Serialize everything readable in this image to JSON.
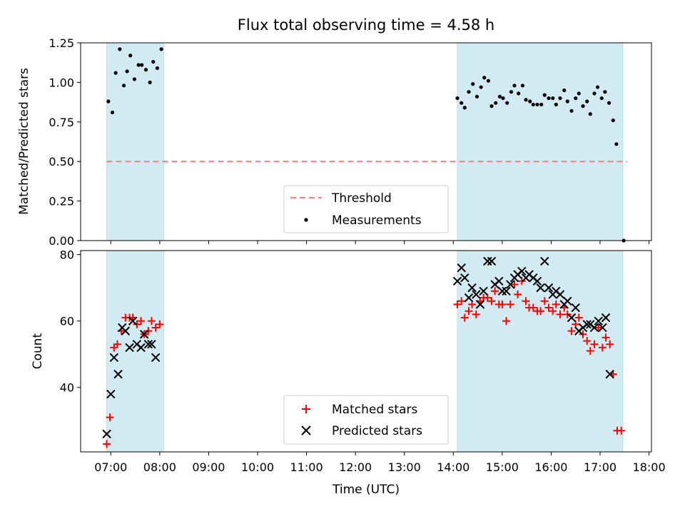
{
  "chart_data": [
    {
      "type": "scatter",
      "title": "Flux total observing time = 4.58 h",
      "xlabel": "",
      "ylabel": "Matched/Predicted stars",
      "xlim": [
        "06:23",
        "18:03"
      ],
      "ylim": [
        0,
        1.25
      ],
      "yticks": [
        "0.00",
        "0.25",
        "0.50",
        "0.75",
        "1.00",
        "1.25"
      ],
      "grid": false,
      "legend_position": "lower-center",
      "shaded_intervals": [
        [
          "06:55",
          "08:05"
        ],
        [
          "14:05",
          "17:28"
        ]
      ],
      "shade_color": "#add8e6",
      "threshold": {
        "name": "Threshold",
        "value": 0.5,
        "x_range": [
          "06:55",
          "17:33"
        ],
        "color": "#f08080",
        "style": "dashed"
      },
      "series": [
        {
          "name": "Measurements",
          "color": "#000000",
          "marker": "dot",
          "points": [
            [
              "06:57",
              0.88
            ],
            [
              "07:02",
              0.81
            ],
            [
              "07:06",
              1.06
            ],
            [
              "07:11",
              1.21
            ],
            [
              "07:16",
              0.98
            ],
            [
              "07:20",
              1.07
            ],
            [
              "07:24",
              1.17
            ],
            [
              "07:29",
              1.02
            ],
            [
              "07:34",
              1.11
            ],
            [
              "07:38",
              1.11
            ],
            [
              "07:43",
              1.08
            ],
            [
              "07:48",
              1.0
            ],
            [
              "07:52",
              1.13
            ],
            [
              "07:57",
              1.09
            ],
            [
              "08:02",
              1.21
            ],
            [
              "14:05",
              0.9
            ],
            [
              "14:10",
              0.87
            ],
            [
              "14:14",
              0.84
            ],
            [
              "14:19",
              0.94
            ],
            [
              "14:24",
              0.99
            ],
            [
              "14:29",
              0.91
            ],
            [
              "14:34",
              0.97
            ],
            [
              "14:38",
              1.03
            ],
            [
              "14:43",
              1.01
            ],
            [
              "14:47",
              0.85
            ],
            [
              "14:52",
              0.87
            ],
            [
              "14:57",
              0.91
            ],
            [
              "15:01",
              0.9
            ],
            [
              "15:06",
              0.87
            ],
            [
              "15:11",
              0.94
            ],
            [
              "15:15",
              0.98
            ],
            [
              "15:20",
              0.93
            ],
            [
              "15:25",
              0.98
            ],
            [
              "15:29",
              0.89
            ],
            [
              "15:34",
              0.88
            ],
            [
              "15:38",
              0.86
            ],
            [
              "15:43",
              0.86
            ],
            [
              "15:48",
              0.86
            ],
            [
              "15:52",
              0.92
            ],
            [
              "15:57",
              0.9
            ],
            [
              "16:02",
              0.9
            ],
            [
              "16:06",
              0.86
            ],
            [
              "16:11",
              0.9
            ],
            [
              "16:16",
              0.95
            ],
            [
              "16:20",
              0.88
            ],
            [
              "16:25",
              0.82
            ],
            [
              "16:30",
              0.9
            ],
            [
              "16:34",
              0.93
            ],
            [
              "16:39",
              0.85
            ],
            [
              "16:44",
              0.88
            ],
            [
              "16:48",
              0.8
            ],
            [
              "16:53",
              0.93
            ],
            [
              "16:57",
              0.97
            ],
            [
              "17:02",
              0.9
            ],
            [
              "17:06",
              0.94
            ],
            [
              "17:11",
              0.87
            ],
            [
              "17:16",
              0.76
            ],
            [
              "17:20",
              0.61
            ],
            [
              "17:29",
              0.0
            ]
          ]
        }
      ]
    },
    {
      "type": "scatter",
      "title": "",
      "xlabel": "Time (UTC)",
      "ylabel": "Count",
      "xlim": [
        "06:23",
        "18:03"
      ],
      "ylim": [
        20.6,
        81.2
      ],
      "yticks": [
        "40",
        "60",
        "80"
      ],
      "xticks": [
        "07:00",
        "08:00",
        "09:00",
        "10:00",
        "11:00",
        "12:00",
        "13:00",
        "14:00",
        "15:00",
        "16:00",
        "17:00",
        "18:00"
      ],
      "grid": false,
      "legend_position": "lower-center",
      "shaded_intervals": [
        [
          "06:55",
          "08:05"
        ],
        [
          "14:05",
          "17:28"
        ]
      ],
      "series": [
        {
          "name": "Matched stars",
          "color": "#ff0000",
          "marker": "plus",
          "points": [
            [
              "06:55",
              23
            ],
            [
              "06:59",
              31
            ],
            [
              "07:04",
              52
            ],
            [
              "07:08",
              53
            ],
            [
              "07:13",
              57
            ],
            [
              "07:18",
              61
            ],
            [
              "07:23",
              61
            ],
            [
              "07:27",
              61
            ],
            [
              "07:32",
              59
            ],
            [
              "07:37",
              60
            ],
            [
              "07:41",
              56
            ],
            [
              "07:46",
              57
            ],
            [
              "07:50",
              60
            ],
            [
              "07:55",
              58
            ],
            [
              "08:00",
              59
            ],
            [
              "14:05",
              65
            ],
            [
              "14:10",
              66
            ],
            [
              "14:14",
              61
            ],
            [
              "14:19",
              63
            ],
            [
              "14:23",
              65
            ],
            [
              "14:28",
              62
            ],
            [
              "14:33",
              66
            ],
            [
              "14:37",
              67
            ],
            [
              "14:42",
              67
            ],
            [
              "14:47",
              66
            ],
            [
              "14:51",
              69
            ],
            [
              "14:56",
              65
            ],
            [
              "15:00",
              65
            ],
            [
              "15:05",
              60
            ],
            [
              "15:10",
              65
            ],
            [
              "15:15",
              71
            ],
            [
              "15:19",
              68
            ],
            [
              "15:24",
              72
            ],
            [
              "15:29",
              66
            ],
            [
              "15:33",
              64
            ],
            [
              "15:38",
              64
            ],
            [
              "15:43",
              63
            ],
            [
              "15:47",
              63
            ],
            [
              "15:52",
              66
            ],
            [
              "15:57",
              64
            ],
            [
              "16:02",
              63
            ],
            [
              "16:06",
              65
            ],
            [
              "16:11",
              62
            ],
            [
              "16:16",
              64
            ],
            [
              "16:20",
              62
            ],
            [
              "16:25",
              57
            ],
            [
              "16:30",
              59
            ],
            [
              "16:34",
              61
            ],
            [
              "16:39",
              56
            ],
            [
              "16:44",
              54
            ],
            [
              "16:48",
              51
            ],
            [
              "16:53",
              53
            ],
            [
              "16:58",
              58
            ],
            [
              "17:03",
              52
            ],
            [
              "17:07",
              55
            ],
            [
              "17:12",
              53
            ],
            [
              "17:16",
              44
            ],
            [
              "17:21",
              27
            ],
            [
              "17:26",
              27
            ]
          ]
        },
        {
          "name": "Predicted stars",
          "color": "#000000",
          "marker": "x",
          "points": [
            [
              "06:55",
              26
            ],
            [
              "07:00",
              38
            ],
            [
              "07:04",
              49
            ],
            [
              "07:09",
              44
            ],
            [
              "07:14",
              58
            ],
            [
              "07:18",
              57
            ],
            [
              "07:23",
              52
            ],
            [
              "07:27",
              60
            ],
            [
              "07:32",
              53
            ],
            [
              "07:37",
              52
            ],
            [
              "07:41",
              56
            ],
            [
              "07:46",
              53
            ],
            [
              "07:50",
              53
            ],
            [
              "07:55",
              49
            ],
            [
              "14:05",
              72
            ],
            [
              "14:10",
              76
            ],
            [
              "14:14",
              73
            ],
            [
              "14:19",
              67
            ],
            [
              "14:23",
              70
            ],
            [
              "14:28",
              68
            ],
            [
              "14:33",
              65
            ],
            [
              "14:37",
              69
            ],
            [
              "14:42",
              78
            ],
            [
              "14:47",
              78
            ],
            [
              "14:51",
              71
            ],
            [
              "14:56",
              72
            ],
            [
              "15:00",
              69
            ],
            [
              "15:05",
              69
            ],
            [
              "15:10",
              71
            ],
            [
              "15:15",
              73
            ],
            [
              "15:19",
              74
            ],
            [
              "15:24",
              75
            ],
            [
              "15:29",
              73
            ],
            [
              "15:33",
              74
            ],
            [
              "15:38",
              73
            ],
            [
              "15:43",
              72
            ],
            [
              "15:47",
              70
            ],
            [
              "15:52",
              78
            ],
            [
              "15:57",
              70
            ],
            [
              "16:02",
              68
            ],
            [
              "16:06",
              69
            ],
            [
              "16:11",
              68
            ],
            [
              "16:16",
              65
            ],
            [
              "16:20",
              66
            ],
            [
              "16:25",
              61
            ],
            [
              "16:30",
              64
            ],
            [
              "16:34",
              57
            ],
            [
              "16:39",
              58
            ],
            [
              "16:44",
              59
            ],
            [
              "16:48",
              59
            ],
            [
              "16:53",
              58
            ],
            [
              "16:58",
              60
            ],
            [
              "17:03",
              58
            ],
            [
              "17:07",
              61
            ],
            [
              "17:12",
              44
            ]
          ]
        }
      ]
    }
  ]
}
